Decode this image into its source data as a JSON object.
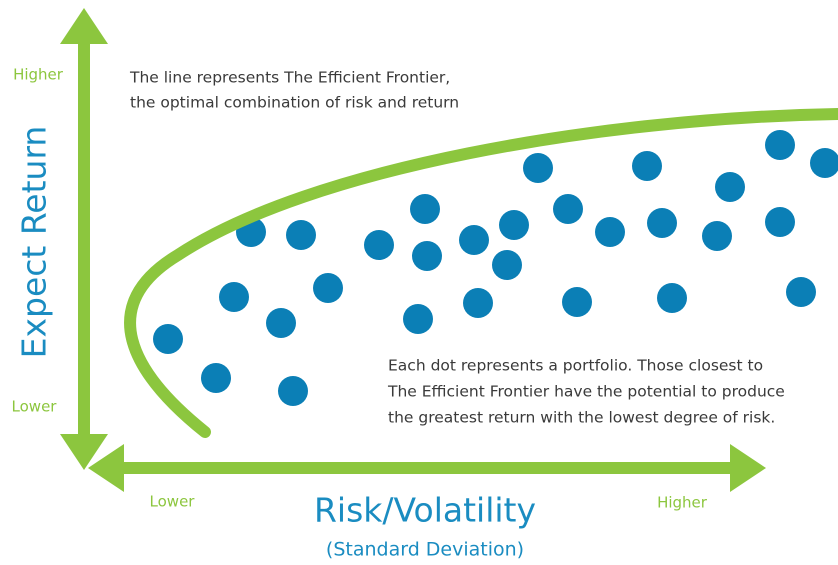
{
  "y_axis": {
    "label": "Expect Return",
    "high": "Higher",
    "low": "Lower"
  },
  "x_axis": {
    "label": "Risk/Volatility",
    "sublabel": "(Standard Deviation)",
    "low": "Lower",
    "high": "Higher"
  },
  "notes": [
    {
      "lines": [
        "The line represents The Efficient Frontier,",
        "the optimal combination of risk and return"
      ]
    },
    {
      "lines": [
        "Each dot represents a portfolio. Those closest to",
        "The Efficient Frontier have the potential to produce",
        "the greatest return with the lowest degree of risk."
      ]
    }
  ]
}
